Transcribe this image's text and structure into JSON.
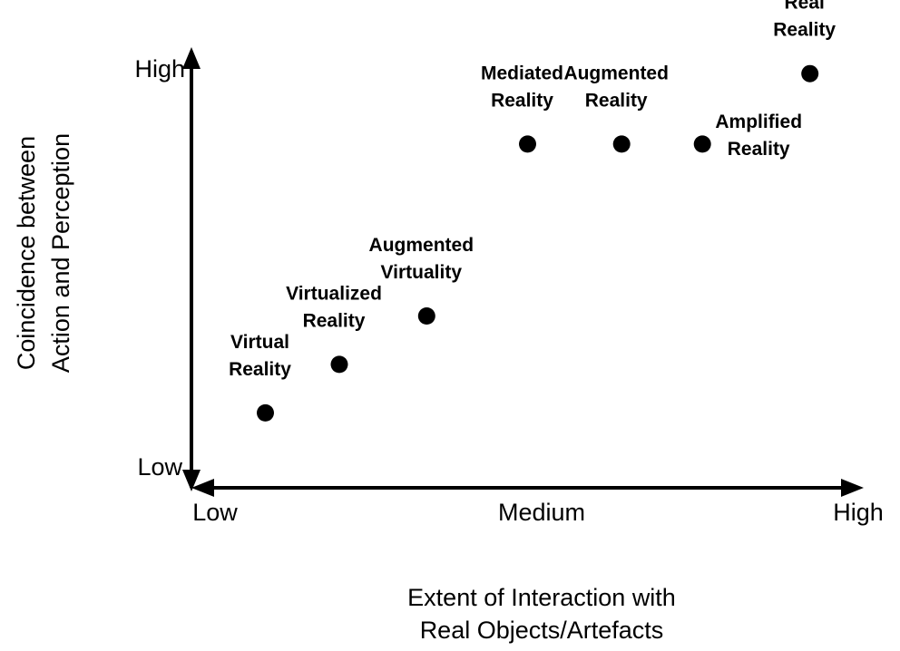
{
  "chart_data": {
    "type": "scatter",
    "title": "",
    "xlabel": [
      "Extent of Interaction with",
      "Real Objects/Artefacts"
    ],
    "ylabel": [
      "Coincidence between",
      "Action and Perception"
    ],
    "x_ticks": [
      "Low",
      "Medium",
      "High"
    ],
    "y_ticks": [
      "Low",
      "High"
    ],
    "xlim": [
      0,
      1
    ],
    "ylim": [
      0,
      1
    ],
    "grid": false,
    "legend": "none",
    "marker_color": "#000000",
    "points": [
      {
        "name": "Virtual Reality",
        "label_lines": [
          "Virtual",
          "Reality"
        ],
        "x": 0.11,
        "y": 0.17
      },
      {
        "name": "Virtualized Reality",
        "label_lines": [
          "Virtualized",
          "Reality"
        ],
        "x": 0.22,
        "y": 0.28
      },
      {
        "name": "Augmented Virtuality",
        "label_lines": [
          "Augmented",
          "Virtuality"
        ],
        "x": 0.35,
        "y": 0.39
      },
      {
        "name": "Mediated Reality",
        "label_lines": [
          "Mediated",
          "Reality"
        ],
        "x": 0.5,
        "y": 0.78
      },
      {
        "name": "Augmented Reality",
        "label_lines": [
          "Augmented",
          "Reality"
        ],
        "x": 0.64,
        "y": 0.78
      },
      {
        "name": "Amplified Reality",
        "label_lines": [
          "Amplified",
          "Reality"
        ],
        "x": 0.76,
        "y": 0.78
      },
      {
        "name": "Real Reality",
        "label_lines": [
          "Real",
          "Reality"
        ],
        "x": 0.92,
        "y": 0.94
      }
    ]
  }
}
